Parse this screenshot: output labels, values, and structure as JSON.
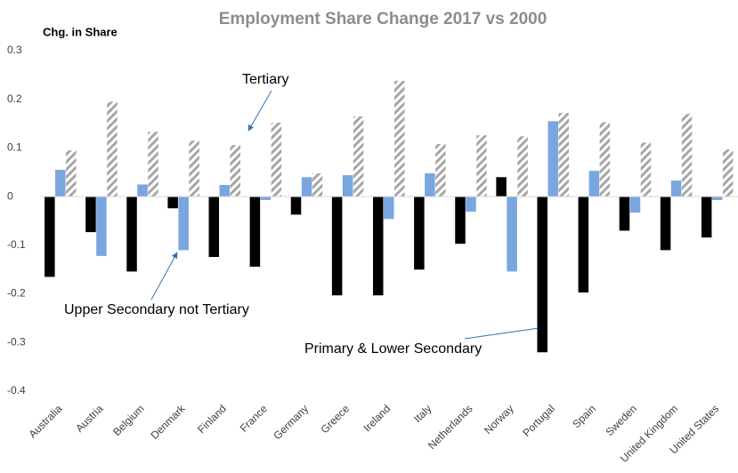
{
  "chart_data": {
    "type": "bar",
    "title": "Employment Share Change 2017 vs 2000",
    "y_label": "Chg. in Share",
    "categories": [
      "Australia",
      "Austria",
      "Belgium",
      "Denmark",
      "Finland",
      "France",
      "Germany",
      "Greece",
      "Ireland",
      "Italy",
      "Netherlands",
      "Norway",
      "Portugal",
      "Spain",
      "Sweden",
      "United Kingdom",
      "United States"
    ],
    "series": [
      {
        "name": "Primary & Lower Secondary",
        "color": "#000000",
        "values": [
          -0.165,
          -0.073,
          -0.154,
          -0.024,
          -0.124,
          -0.144,
          -0.037,
          -0.203,
          -0.203,
          -0.15,
          -0.097,
          0.04,
          -0.32,
          -0.197,
          -0.07,
          -0.11,
          -0.084
        ]
      },
      {
        "name": "Upper Secondary not Tertiary",
        "color": "#7aa6e0",
        "values": [
          0.055,
          -0.122,
          0.025,
          -0.11,
          0.024,
          -0.007,
          0.04,
          0.044,
          -0.046,
          0.048,
          -0.031,
          -0.154,
          0.155,
          0.053,
          -0.033,
          0.033,
          -0.007
        ]
      },
      {
        "name": "Tertiary",
        "color": "#a6a6a6",
        "pattern": "hatch",
        "values": [
          0.095,
          0.195,
          0.133,
          0.115,
          0.106,
          0.152,
          0.048,
          0.165,
          0.238,
          0.108,
          0.126,
          0.124,
          0.172,
          0.153,
          0.111,
          0.17,
          0.097
        ]
      }
    ],
    "ylim": [
      -0.4,
      0.3
    ],
    "yticks": [
      -0.4,
      -0.3,
      -0.2,
      -0.1,
      0,
      0.1,
      0.2,
      0.3
    ],
    "grid": false,
    "legend": "annotations"
  }
}
